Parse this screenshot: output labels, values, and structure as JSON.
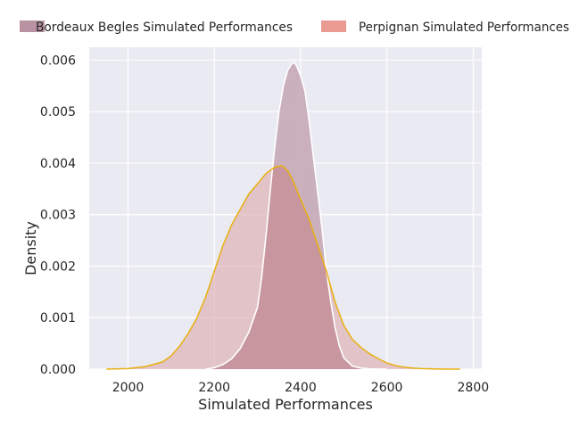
{
  "chart_data": {
    "type": "area",
    "title": "",
    "xlabel": "Simulated Performances",
    "ylabel": "Density",
    "xlim": [
      1910,
      2820
    ],
    "ylim": [
      0,
      0.00625
    ],
    "xticks": [
      2000,
      2200,
      2400,
      2600,
      2800
    ],
    "xtick_labels": [
      "2000",
      "2200",
      "2400",
      "2600",
      "2800"
    ],
    "yticks": [
      0,
      0.001,
      0.002,
      0.003,
      0.004,
      0.005,
      0.006
    ],
    "ytick_labels": [
      "0.000",
      "0.001",
      "0.002",
      "0.003",
      "0.004",
      "0.005",
      "0.006"
    ],
    "grid": true,
    "legend_position": "top",
    "series": [
      {
        "name": "Bordeaux Begles Simulated Performances",
        "fill_color": "#c4a4b4",
        "legend_color": "#b48c9c",
        "line_color": "#ffffff",
        "x": [
          2180,
          2200,
          2220,
          2240,
          2260,
          2280,
          2300,
          2310,
          2320,
          2330,
          2340,
          2350,
          2360,
          2370,
          2380,
          2385,
          2390,
          2400,
          2410,
          2420,
          2430,
          2440,
          2450,
          2460,
          2470,
          2480,
          2490,
          2500,
          2520,
          2540,
          2560,
          2580,
          2600
        ],
        "y": [
          0,
          3e-05,
          9e-05,
          0.0002,
          0.0004,
          0.00072,
          0.0012,
          0.0018,
          0.0026,
          0.0035,
          0.0043,
          0.005,
          0.0055,
          0.0058,
          0.00594,
          0.00595,
          0.0059,
          0.0057,
          0.0054,
          0.0048,
          0.0041,
          0.0034,
          0.0027,
          0.0019,
          0.0013,
          0.0008,
          0.00045,
          0.00022,
          6e-05,
          2e-05,
          5e-06,
          1e-06,
          0
        ]
      },
      {
        "name": "Perpignan Simulated Performances",
        "fill_color": "#dca8ac",
        "legend_color": "#e8968c",
        "line_color": "#e8b010",
        "x": [
          1950,
          2000,
          2040,
          2080,
          2100,
          2120,
          2140,
          2160,
          2180,
          2200,
          2220,
          2240,
          2260,
          2280,
          2300,
          2320,
          2340,
          2355,
          2360,
          2370,
          2380,
          2400,
          2420,
          2440,
          2460,
          2480,
          2500,
          2520,
          2540,
          2560,
          2580,
          2600,
          2620,
          2640,
          2660,
          2680,
          2720,
          2770
        ],
        "y": [
          0,
          1e-05,
          5e-05,
          0.00014,
          0.00026,
          0.00045,
          0.0007,
          0.001,
          0.0014,
          0.0019,
          0.0024,
          0.0028,
          0.0031,
          0.0034,
          0.0036,
          0.0038,
          0.00392,
          0.00395,
          0.00393,
          0.00385,
          0.0037,
          0.0033,
          0.0029,
          0.0024,
          0.0019,
          0.0013,
          0.00085,
          0.00058,
          0.00042,
          0.0003,
          0.0002,
          0.00012,
          7e-05,
          4e-05,
          2e-05,
          1e-05,
          2e-06,
          0
        ]
      }
    ]
  }
}
